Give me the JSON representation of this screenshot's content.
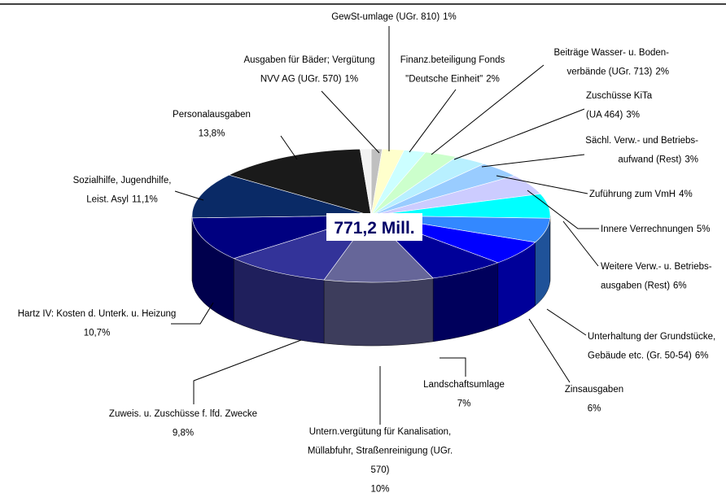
{
  "chart_data": {
    "type": "pie3d",
    "center_label": "771,2 Mill.",
    "categories": [
      [
        "GewSt-umlage (UGr. 810)"
      ],
      [
        "Finanz.beteiligung Fonds",
        "\"Deutsche Einheit\""
      ],
      [
        "Beiträge Wasser- u. Boden-",
        "verbände (UGr. 713)"
      ],
      [
        "Zuschüsse KiTa",
        "(UA 464)"
      ],
      [
        "Sächl. Verw.- und Betriebs-",
        "aufwand (Rest)"
      ],
      [
        "Zuführung zum VmH"
      ],
      [
        "Innere Verrechnungen"
      ],
      [
        "Weitere Verw.- u. Betriebs-",
        "ausgaben (Rest)"
      ],
      [
        "Unterhaltung der Grundstücke,",
        "Gebäude  etc. (Gr. 50-54)"
      ],
      [
        "Zinsausgaben"
      ],
      [
        "Landschaftsumlage"
      ],
      [
        "Untern.vergütung für Kanalisation,",
        "Müllabfuhr, Straßenreinigung (UGr.",
        "570)"
      ],
      [
        "Zuweis. u. Zuschüsse f. lfd. Zwecke"
      ],
      [
        "Hartz IV: Kosten d. Unterk. u. Heizung"
      ],
      [
        "Sozialhilfe, Jugendhilfe,",
        "Leist. Asyl"
      ],
      [
        "Personalausgaben"
      ],
      [
        "Ausgaben für Bäder; Vergütung",
        "NVV AG (UGr. 570)"
      ]
    ],
    "values": [
      1,
      2,
      2,
      3,
      3,
      4,
      5,
      6,
      6,
      6,
      7,
      10,
      9.8,
      10.7,
      11.1,
      13.8,
      1
    ],
    "value_labels": [
      "1%",
      "2%",
      "2%",
      "3%",
      "3%",
      "4%",
      "5%",
      "6%",
      "6%",
      "6%",
      "7%",
      "10%",
      "9,8%",
      "10,7%",
      "11,1%",
      "13,8%",
      "1%"
    ],
    "colors": [
      "#c0c0c0",
      "#ffffcc",
      "#ccffff",
      "#ccffcc",
      "#b8f0ff",
      "#99ccff",
      "#ccccff",
      "#00ffff",
      "#3388ff",
      "#0000ff",
      "#000099",
      "#666699",
      "#333399",
      "#000080",
      "#0a2a66",
      "#1a1a1a",
      "#f2f2f2"
    ]
  }
}
